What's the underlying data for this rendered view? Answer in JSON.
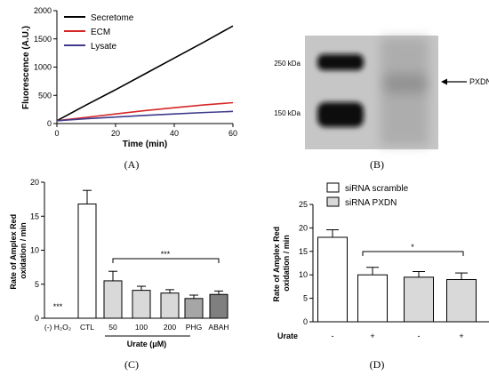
{
  "panels": {
    "a": "(A)",
    "b": "(B)",
    "c": "(C)",
    "d": "(D)"
  },
  "chart_data": [
    {
      "id": "A",
      "type": "line",
      "xlabel": "Time (min)",
      "ylabel": "Fluorescence (A.U.)",
      "xlim": [
        0,
        60
      ],
      "ylim": [
        0,
        2000
      ],
      "xticks": [
        "0",
        "20",
        "40",
        "60"
      ],
      "yticks": [
        "0",
        "500",
        "1000",
        "1500",
        "2000"
      ],
      "legend_position": "top-left",
      "series": [
        {
          "name": "Secretome",
          "color": "#000000",
          "x": [
            0,
            10,
            20,
            30,
            40,
            50,
            60
          ],
          "y": [
            50,
            330,
            600,
            880,
            1160,
            1440,
            1730
          ]
        },
        {
          "name": "ECM",
          "color": "#d62728",
          "x": [
            0,
            10,
            20,
            30,
            40,
            50,
            60
          ],
          "y": [
            50,
            110,
            170,
            230,
            280,
            330,
            370
          ]
        },
        {
          "name": "Lysate",
          "color": "#3f3a8c",
          "x": [
            0,
            10,
            20,
            30,
            40,
            50,
            60
          ],
          "y": [
            50,
            85,
            115,
            145,
            170,
            195,
            215
          ]
        }
      ]
    },
    {
      "id": "B",
      "type": "gel",
      "markers": [
        "250 kDa",
        "150 kDa"
      ],
      "annotation": "PXDN"
    },
    {
      "id": "C",
      "type": "bar",
      "ylabel": "Rate of Amplex Red oxidation / min",
      "ylim": [
        0,
        20
      ],
      "yticks": [
        "0",
        "5",
        "10",
        "15",
        "20"
      ],
      "categories": [
        "(-) H₂O₂",
        "CTL",
        "50",
        "100",
        "200",
        "PHG",
        "ABAH"
      ],
      "values": [
        0,
        16.8,
        5.5,
        4.1,
        3.7,
        2.9,
        3.5
      ],
      "errors": [
        0,
        2.0,
        1.4,
        0.6,
        0.5,
        0.5,
        0.5
      ],
      "colors": [
        "#ffffff",
        "#ffffff",
        "#d9d9d9",
        "#d9d9d9",
        "#d9d9d9",
        "#a6a6a6",
        "#7f7f7f"
      ],
      "group_label": "Urate (μM)",
      "zero_marker": "***",
      "bracket_label": "***"
    },
    {
      "id": "D",
      "type": "bar",
      "ylabel": "Rate of Amplex Red oxidation / min",
      "ylim": [
        0,
        25
      ],
      "yticks": [
        "0",
        "5",
        "10",
        "15",
        "20",
        "25"
      ],
      "series": [
        {
          "name": "siRNA scramble",
          "color": "#ffffff"
        },
        {
          "name": "siRNA PXDN",
          "color": "#d9d9d9"
        }
      ],
      "values": [
        18.0,
        10.0,
        9.5,
        9.0
      ],
      "errors": [
        1.6,
        1.6,
        1.2,
        1.4
      ],
      "colors": [
        "#ffffff",
        "#ffffff",
        "#d9d9d9",
        "#d9d9d9"
      ],
      "row_label": "Urate",
      "condition_labels": [
        "-",
        "+",
        "-",
        "+"
      ],
      "bracket_label": "*",
      "legend_position": "top-right"
    }
  ]
}
